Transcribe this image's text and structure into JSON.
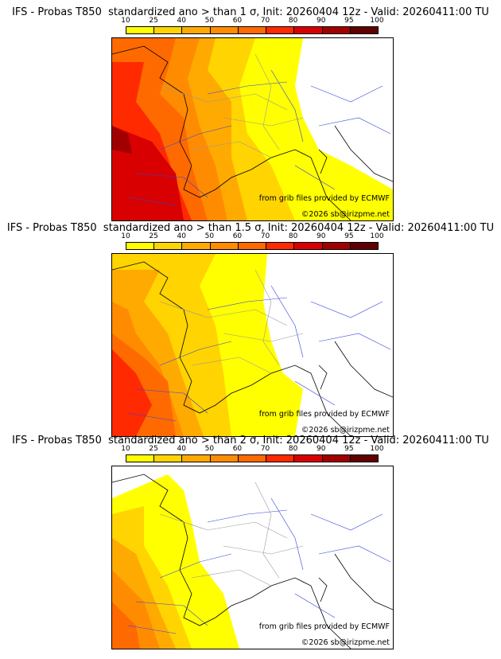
{
  "colorbar": {
    "ticks": [
      "10",
      "25",
      "40",
      "50",
      "60",
      "70",
      "80",
      "90",
      "95",
      "100"
    ],
    "colors": [
      "#ffff00",
      "#ffd400",
      "#ffaa00",
      "#ff8c00",
      "#ff6a00",
      "#ff2a00",
      "#d80000",
      "#a00000",
      "#600000"
    ]
  },
  "panels": [
    {
      "title": "IFS - Probas T850  standardized ano > than 1 σ, Init: 20260404 12z - Valid: 20260411:00 TU",
      "level": 1
    },
    {
      "title": "IFS - Probas T850  standardized ano > than 1.5 σ, Init: 20260404 12z - Valid: 20260411:00 TU",
      "level": 2
    },
    {
      "title": "IFS - Probas T850  standardized ano > than 2 σ, Init: 20260404 12z - Valid: 20260411:00 TU",
      "level": 3
    }
  ],
  "credits": {
    "source": "from grib files provided by ECMWF",
    "copyright": "©2026 sb@irizpme.net"
  }
}
